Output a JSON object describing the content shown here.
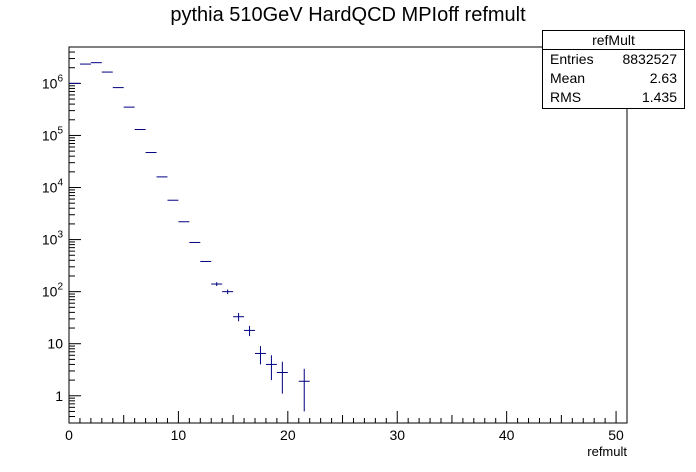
{
  "chart_data": {
    "type": "histogram",
    "title": "pythia 510GeV HardQCD MPIoff refmult",
    "xlabel": "refmult",
    "ylabel": "",
    "xlim": [
      0,
      51
    ],
    "ylim": [
      0.3,
      5000000
    ],
    "log_y": true,
    "grid": false,
    "legend": "none",
    "x_ticks": [
      0,
      10,
      20,
      30,
      40,
      50
    ],
    "y_ticks": [
      {
        "value": 1,
        "base": "1",
        "exp": ""
      },
      {
        "value": 10,
        "base": "10",
        "exp": ""
      },
      {
        "value": 100,
        "base": "10",
        "exp": "2"
      },
      {
        "value": 1000,
        "base": "10",
        "exp": "3"
      },
      {
        "value": 10000,
        "base": "10",
        "exp": "4"
      },
      {
        "value": 100000,
        "base": "10",
        "exp": "5"
      },
      {
        "value": 1000000,
        "base": "10",
        "exp": "6"
      }
    ],
    "bin_width": 1,
    "bins": [
      {
        "x": 0,
        "y": 1000000,
        "err": 0
      },
      {
        "x": 1,
        "y": 2350000,
        "err": 0
      },
      {
        "x": 2,
        "y": 2500000,
        "err": 0
      },
      {
        "x": 3,
        "y": 1650000,
        "err": 0
      },
      {
        "x": 4,
        "y": 830000,
        "err": 0
      },
      {
        "x": 5,
        "y": 350000,
        "err": 0
      },
      {
        "x": 6,
        "y": 130000,
        "err": 0
      },
      {
        "x": 7,
        "y": 47000,
        "err": 0
      },
      {
        "x": 8,
        "y": 16000,
        "err": 0
      },
      {
        "x": 9,
        "y": 5700,
        "err": 0
      },
      {
        "x": 10,
        "y": 2200,
        "err": 0
      },
      {
        "x": 11,
        "y": 880,
        "err": 0
      },
      {
        "x": 12,
        "y": 380,
        "err": 0
      },
      {
        "x": 13,
        "y": 140,
        "err": 12
      },
      {
        "x": 14,
        "y": 100,
        "err": 10
      },
      {
        "x": 15,
        "y": 33,
        "err": 6
      },
      {
        "x": 16,
        "y": 18,
        "err": 4
      },
      {
        "x": 17,
        "y": 6.5,
        "err": 2.5
      },
      {
        "x": 18,
        "y": 4,
        "err": 2
      },
      {
        "x": 19,
        "y": 2.8,
        "err": 1.7
      },
      {
        "x": 21,
        "y": 1.9,
        "err": 1.4
      }
    ],
    "line_color": "#000080",
    "stats_box": {
      "name": "refMult",
      "rows": [
        {
          "label": "Entries",
          "value": "8832527"
        },
        {
          "label": "Mean",
          "value": "2.63"
        },
        {
          "label": "RMS",
          "value": "1.435"
        }
      ]
    }
  }
}
